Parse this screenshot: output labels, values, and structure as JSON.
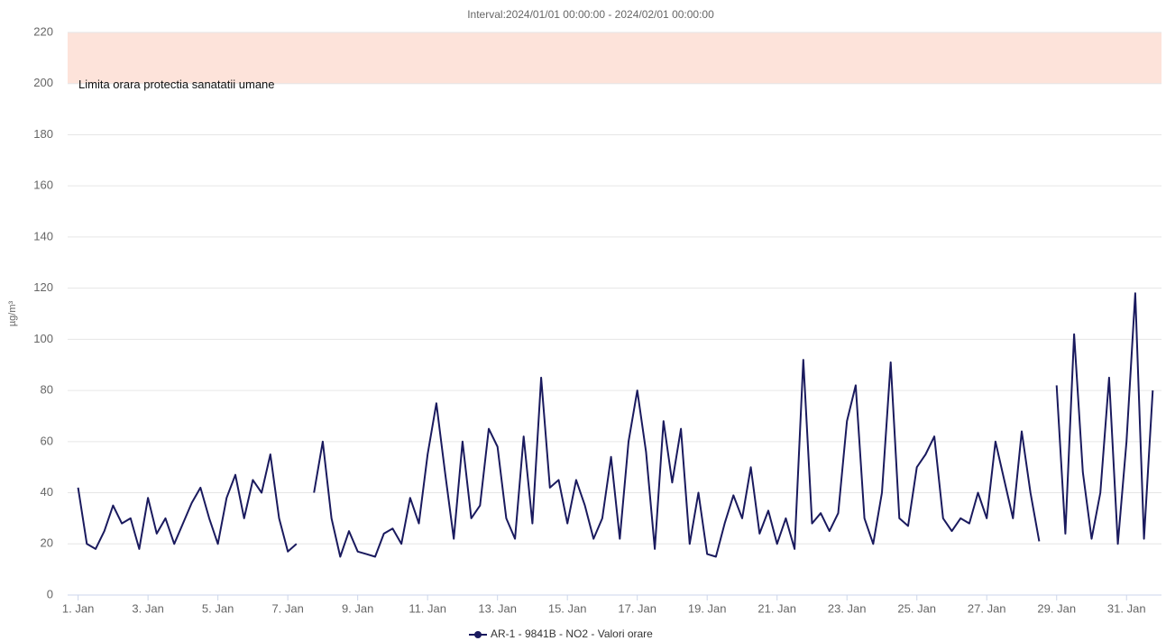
{
  "chart_data": {
    "type": "line",
    "title": "Interval:2024/01/01 00:00:00 - 2024/02/01 00:00:00",
    "y_label": "µg/m³",
    "xlim": [
      0.7,
      32
    ],
    "ylim": [
      0,
      220
    ],
    "yticks": [
      0,
      20,
      40,
      60,
      80,
      100,
      120,
      140,
      160,
      180,
      200,
      220
    ],
    "xticks": [
      {
        "value": 1,
        "label": "1. Jan"
      },
      {
        "value": 3,
        "label": "3. Jan"
      },
      {
        "value": 5,
        "label": "5. Jan"
      },
      {
        "value": 7,
        "label": "7. Jan"
      },
      {
        "value": 9,
        "label": "9. Jan"
      },
      {
        "value": 11,
        "label": "11. Jan"
      },
      {
        "value": 13,
        "label": "13. Jan"
      },
      {
        "value": 15,
        "label": "15. Jan"
      },
      {
        "value": 17,
        "label": "17. Jan"
      },
      {
        "value": 19,
        "label": "19. Jan"
      },
      {
        "value": 21,
        "label": "21. Jan"
      },
      {
        "value": 23,
        "label": "23. Jan"
      },
      {
        "value": 25,
        "label": "25. Jan"
      },
      {
        "value": 27,
        "label": "27. Jan"
      },
      {
        "value": 29,
        "label": "29. Jan"
      },
      {
        "value": 31,
        "label": "31. Jan"
      }
    ],
    "grid": true,
    "legend": "bottom",
    "bands": [
      {
        "from": 200,
        "to": 220,
        "label": "Limita orara protectia sanatatii umane",
        "color": "#fde3da"
      }
    ],
    "x": [
      1,
      1.25,
      1.5,
      1.75,
      2,
      2.25,
      2.5,
      2.75,
      3,
      3.25,
      3.5,
      3.75,
      4,
      4.25,
      4.5,
      4.75,
      5,
      5.25,
      5.5,
      5.75,
      6,
      6.25,
      6.5,
      6.75,
      7,
      7.25,
      7.5,
      7.75,
      8,
      8.25,
      8.5,
      8.75,
      9,
      9.25,
      9.5,
      9.75,
      10,
      10.25,
      10.5,
      10.75,
      11,
      11.25,
      11.5,
      11.75,
      12,
      12.25,
      12.5,
      12.75,
      13,
      13.25,
      13.5,
      13.75,
      14,
      14.25,
      14.5,
      14.75,
      15,
      15.25,
      15.5,
      15.75,
      16,
      16.25,
      16.5,
      16.75,
      17,
      17.25,
      17.5,
      17.75,
      18,
      18.25,
      18.5,
      18.75,
      19,
      19.25,
      19.5,
      19.75,
      20,
      20.25,
      20.5,
      20.75,
      21,
      21.25,
      21.5,
      21.75,
      22,
      22.25,
      22.5,
      22.75,
      23,
      23.25,
      23.5,
      23.75,
      24,
      24.25,
      24.5,
      24.75,
      25,
      25.25,
      25.5,
      25.75,
      26,
      26.25,
      26.5,
      26.75,
      27,
      27.25,
      27.5,
      27.75,
      28,
      28.25,
      28.5,
      28.75,
      29,
      29.25,
      29.5,
      29.75,
      30,
      30.25,
      30.5,
      30.75,
      31,
      31.25,
      31.5,
      31.75
    ],
    "series": [
      {
        "name": "AR-1 - 9841B - NO2 - Valori orare",
        "color": "#1a1a5e",
        "values": [
          42,
          20,
          18,
          25,
          35,
          28,
          30,
          18,
          38,
          24,
          30,
          20,
          28,
          36,
          42,
          30,
          20,
          38,
          47,
          30,
          45,
          40,
          55,
          30,
          17,
          20,
          null,
          40,
          60,
          30,
          15,
          25,
          17,
          16,
          15,
          24,
          26,
          20,
          38,
          28,
          55,
          75,
          48,
          22,
          60,
          30,
          35,
          65,
          58,
          30,
          22,
          62,
          28,
          85,
          42,
          45,
          28,
          45,
          35,
          22,
          30,
          54,
          22,
          60,
          80,
          56,
          18,
          68,
          44,
          65,
          20,
          40,
          16,
          15,
          28,
          39,
          30,
          50,
          24,
          33,
          20,
          30,
          18,
          92,
          28,
          32,
          25,
          32,
          68,
          82,
          30,
          20,
          40,
          91,
          30,
          27,
          50,
          55,
          62,
          30,
          25,
          30,
          28,
          40,
          30,
          60,
          45,
          30,
          64,
          40,
          21,
          null,
          82,
          24,
          102,
          48,
          22,
          40,
          85,
          20,
          60,
          118,
          22,
          80
        ]
      }
    ]
  }
}
